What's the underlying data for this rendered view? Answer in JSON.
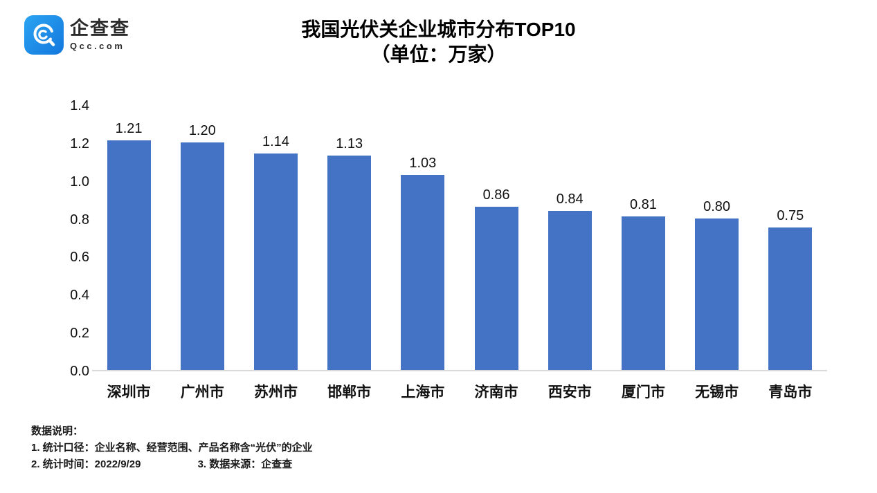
{
  "logo": {
    "name": "企查查",
    "domain": "Qcc.com",
    "blue_top": "#2ba5f2",
    "blue_bottom": "#1377dd"
  },
  "title": {
    "line1": "我国光伏关企业城市分布TOP10",
    "line2": "（单位：万家）"
  },
  "chart_data": {
    "type": "bar",
    "title": "我国光伏关企业城市分布TOP10（单位：万家）",
    "categories": [
      "深圳市",
      "广州市",
      "苏州市",
      "邯郸市",
      "上海市",
      "济南市",
      "西安市",
      "厦门市",
      "无锡市",
      "青岛市"
    ],
    "values": [
      1.21,
      1.2,
      1.14,
      1.13,
      1.03,
      0.86,
      0.84,
      0.81,
      0.8,
      0.75
    ],
    "value_labels": [
      "1.21",
      "1.20",
      "1.14",
      "1.13",
      "1.03",
      "0.86",
      "0.84",
      "0.81",
      "0.80",
      "0.75"
    ],
    "xlabel": "",
    "ylabel": "",
    "ylim": [
      0,
      1.4
    ],
    "yticks": [
      0.0,
      0.2,
      0.4,
      0.6,
      0.8,
      1.0,
      1.2,
      1.4
    ],
    "ytick_labels": [
      "0.0",
      "0.2",
      "0.4",
      "0.6",
      "0.8",
      "1.0",
      "1.2",
      "1.4"
    ],
    "bar_color": "#4472c4",
    "axis_line_color": "#d9d9d9",
    "grid": false,
    "legend_position": "none"
  },
  "notes": {
    "heading": "数据说明：",
    "line1": "1. 统计口径：企业名称、经营范围、产品名称含“光伏”的企业",
    "line2_left": "2. 统计时间：2022/9/29",
    "line2_right": "3. 数据来源：企查查"
  }
}
